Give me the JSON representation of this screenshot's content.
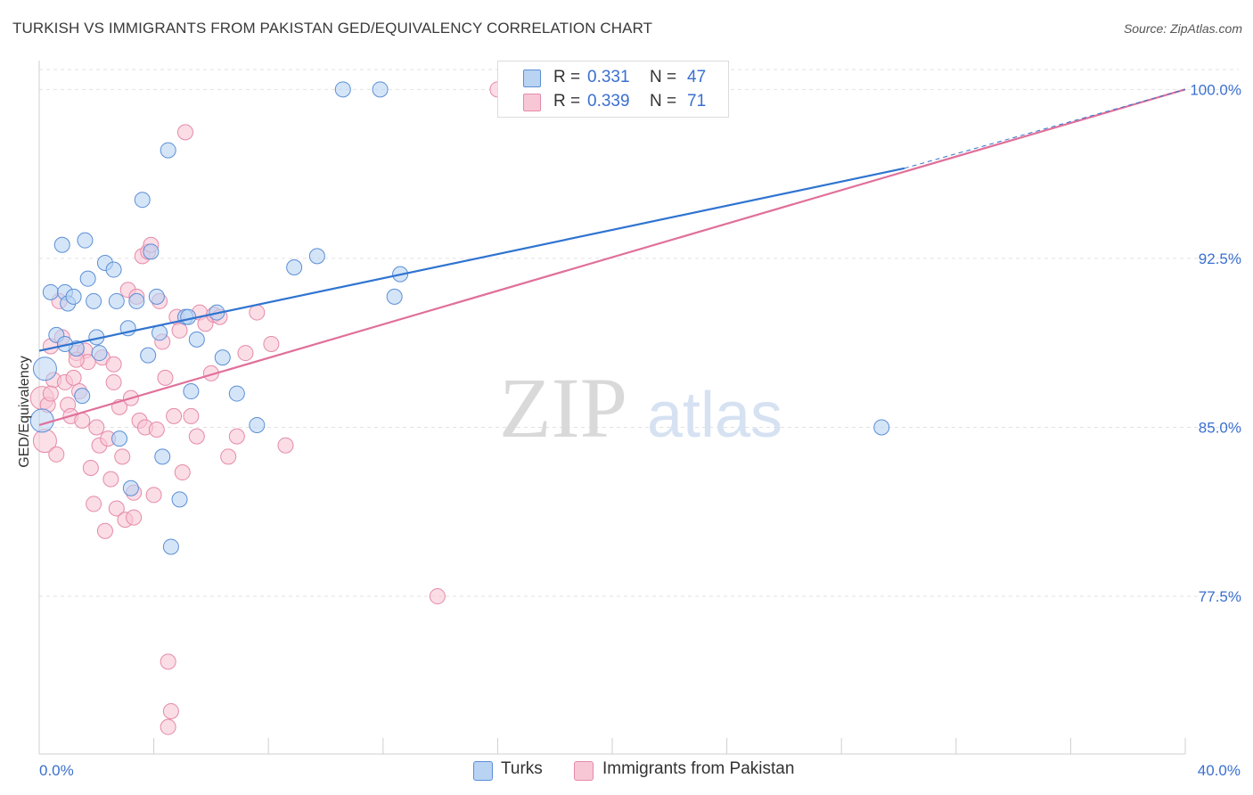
{
  "title": "TURKISH VS IMMIGRANTS FROM PAKISTAN GED/EQUIVALENCY CORRELATION CHART",
  "source": "Source: ZipAtlas.com",
  "watermark": {
    "zip": "ZIP",
    "atlas": "atlas"
  },
  "colors": {
    "blue_fill": "#b9d3f3",
    "blue_stroke": "#5b8fd6",
    "blue_line": "#2f74d0",
    "pink_fill": "#f8c7d6",
    "pink_stroke": "#e58aa8",
    "pink_line": "#e0709a",
    "axis_label": "#3a6fd0",
    "grid": "#e2e2e2"
  },
  "stats": {
    "r_label": "R =",
    "n_label": "N =",
    "turks": {
      "r": "0.331",
      "n": "47"
    },
    "pakistan": {
      "r": "0.339",
      "n": "71"
    }
  },
  "chart_data": {
    "type": "scatter",
    "title": "TURKISH VS IMMIGRANTS FROM PAKISTAN GED/EQUIVALENCY CORRELATION CHART",
    "xlabel": "",
    "ylabel": "GED/Equivalency",
    "xlim": [
      0,
      40
    ],
    "ylim": [
      70.5,
      101.2
    ],
    "x_tick_labels": [
      {
        "value": 0,
        "label": "0.0%"
      },
      {
        "value": 40,
        "label": "40.0%"
      }
    ],
    "y_tick_labels": [
      {
        "value": 100,
        "label": "100.0%"
      },
      {
        "value": 92.5,
        "label": "92.5%"
      },
      {
        "value": 85,
        "label": "85.0%"
      },
      {
        "value": 77.5,
        "label": "77.5%"
      }
    ],
    "legend": [
      "Turks",
      "Immigrants from Pakistan"
    ],
    "series": [
      {
        "name": "Turks",
        "x": [
          0.1,
          0.2,
          0.4,
          0.6,
          0.8,
          0.9,
          1.0,
          1.2,
          1.3,
          1.5,
          1.6,
          1.9,
          2.0,
          2.1,
          2.3,
          2.6,
          2.8,
          3.1,
          3.2,
          3.4,
          3.6,
          3.8,
          3.9,
          4.1,
          4.2,
          4.3,
          4.5,
          4.6,
          4.9,
          5.1,
          5.2,
          5.3,
          5.5,
          6.2,
          6.4,
          6.9,
          7.6,
          8.9,
          9.7,
          10.6,
          11.9,
          12.4,
          12.6,
          29.4,
          0.9,
          1.7,
          2.7
        ],
        "y": [
          85.3,
          87.6,
          91.0,
          89.1,
          93.1,
          91.0,
          90.5,
          90.8,
          88.5,
          86.4,
          93.3,
          90.6,
          89.0,
          88.3,
          92.3,
          92.0,
          84.5,
          89.4,
          82.3,
          90.6,
          95.1,
          88.2,
          92.8,
          90.8,
          89.2,
          83.7,
          97.3,
          79.7,
          81.8,
          89.9,
          89.9,
          86.6,
          88.9,
          90.1,
          88.1,
          86.5,
          85.1,
          92.1,
          92.6,
          100.0,
          100.0,
          90.8,
          91.8,
          85.0,
          88.7,
          91.6,
          90.6
        ]
      },
      {
        "name": "Immigrants from Pakistan",
        "x": [
          0.1,
          0.2,
          0.3,
          0.4,
          0.5,
          0.6,
          0.7,
          0.8,
          0.9,
          1.0,
          1.1,
          1.2,
          1.3,
          1.4,
          1.5,
          1.6,
          1.7,
          1.8,
          1.9,
          2.0,
          2.1,
          2.2,
          2.3,
          2.4,
          2.5,
          2.6,
          2.7,
          2.8,
          2.9,
          3.0,
          3.1,
          3.2,
          3.3,
          3.4,
          3.5,
          3.6,
          3.7,
          3.8,
          3.9,
          4.0,
          4.1,
          4.2,
          4.3,
          4.4,
          4.5,
          4.6,
          4.7,
          4.8,
          4.9,
          5.0,
          5.1,
          5.3,
          5.5,
          5.6,
          5.8,
          6.0,
          6.1,
          6.3,
          6.6,
          6.9,
          7.2,
          7.6,
          8.1,
          8.6,
          0.4,
          1.3,
          2.6,
          3.3,
          4.5,
          13.9,
          16.0
        ],
        "y": [
          86.3,
          84.4,
          86.0,
          88.6,
          87.1,
          83.8,
          90.6,
          89.0,
          87.0,
          86.0,
          85.5,
          87.2,
          88.3,
          86.6,
          85.3,
          88.4,
          87.9,
          83.2,
          81.6,
          85.0,
          84.2,
          88.1,
          80.4,
          84.5,
          82.7,
          87.8,
          81.4,
          85.9,
          83.7,
          80.9,
          91.1,
          86.3,
          82.1,
          90.8,
          85.3,
          92.6,
          85.0,
          92.8,
          93.1,
          82.0,
          84.9,
          90.6,
          88.8,
          87.2,
          74.6,
          72.4,
          85.5,
          89.9,
          89.3,
          83.0,
          98.1,
          85.5,
          84.6,
          90.1,
          89.6,
          87.4,
          90.0,
          89.9,
          83.7,
          84.6,
          88.3,
          90.1,
          88.7,
          84.2,
          86.5,
          88.0,
          87.0,
          81.0,
          71.7,
          77.5,
          100.0
        ]
      }
    ],
    "trend_lines": [
      {
        "name": "Turks",
        "x": [
          0,
          30.2
        ],
        "y": [
          88.4,
          96.5
        ],
        "dashed_extension_to": [
          40,
          100.0
        ]
      },
      {
        "name": "Immigrants from Pakistan",
        "x": [
          0,
          40
        ],
        "y": [
          85.1,
          100.0
        ]
      }
    ]
  }
}
